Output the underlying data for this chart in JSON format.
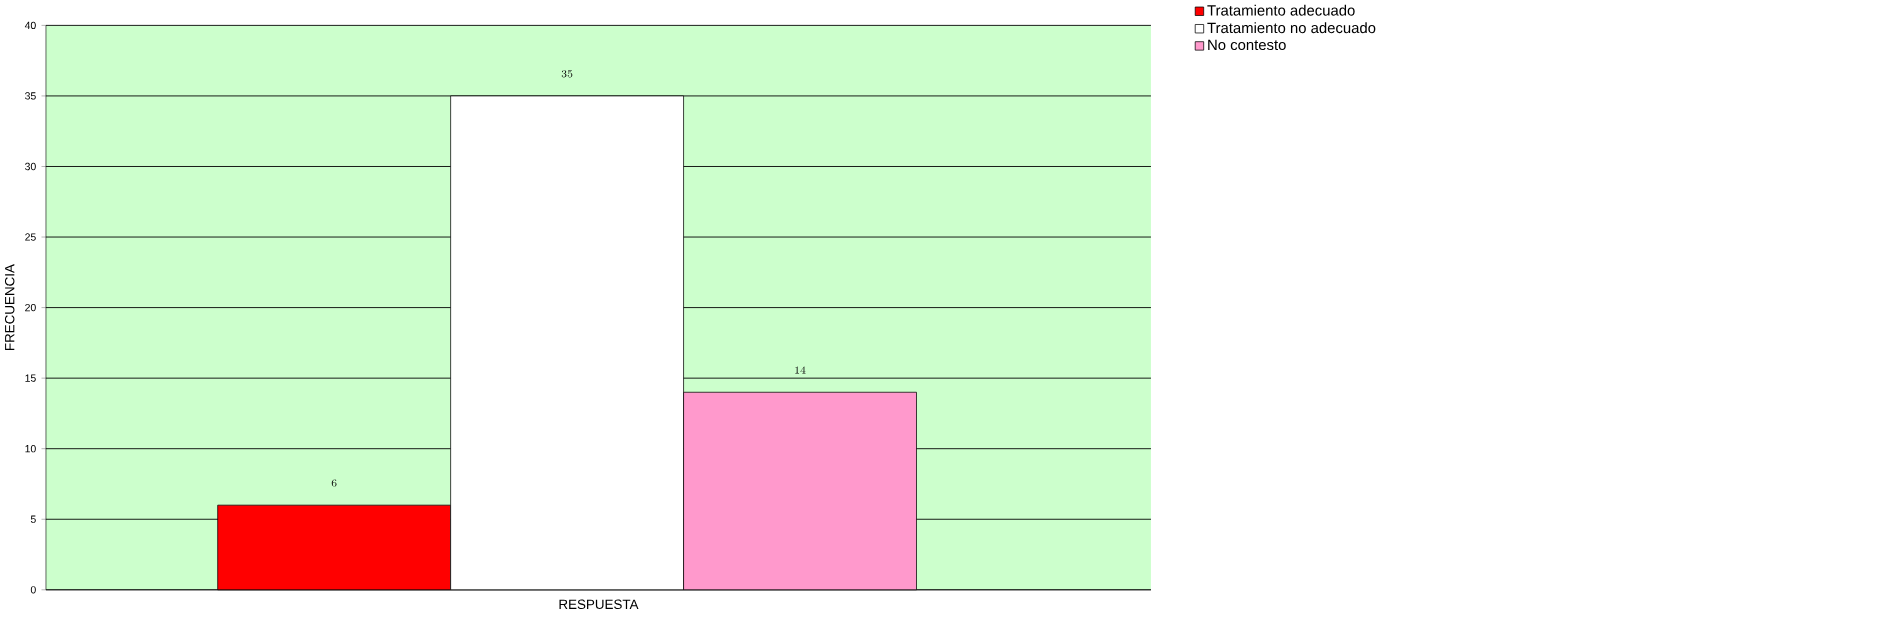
{
  "chart_data": {
    "type": "bar",
    "xlabel": "RESPUESTA",
    "ylabel": "FRECUENCIA",
    "categories": [
      null
    ],
    "series": [
      {
        "name": "Tratamiento adecuado",
        "color": "#ff0000",
        "values": [
          6
        ]
      },
      {
        "name": "Tratamiento no adecuado",
        "color": "#ffffff",
        "values": [
          35
        ]
      },
      {
        "name": "No contesto",
        "color": "#ff99cc",
        "values": [
          14
        ]
      }
    ],
    "ylim": [
      0,
      40
    ],
    "yticks": [
      0,
      5,
      10,
      15,
      20,
      25,
      30,
      35,
      40
    ],
    "grid": "y",
    "legend": "top right",
    "data_labels": true
  }
}
